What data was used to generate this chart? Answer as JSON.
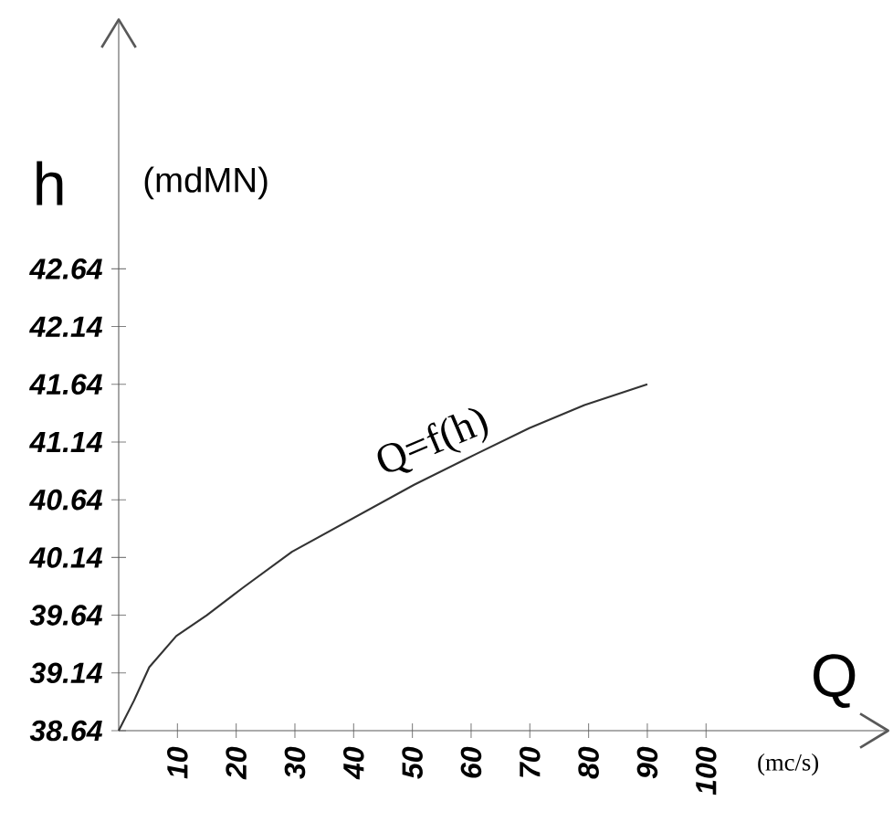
{
  "chart_data": {
    "type": "line",
    "xlabel": "Q",
    "ylabel": "h",
    "x": [
      0,
      2.6,
      5.2,
      9.8,
      15,
      21.2,
      29.5,
      39.9,
      50.3,
      60.6,
      69.9,
      79.3,
      90
    ],
    "values": [
      38.64,
      38.9,
      39.19,
      39.46,
      39.64,
      39.88,
      40.19,
      40.48,
      40.77,
      41.03,
      41.26,
      41.46,
      41.64
    ],
    "color": "#333333",
    "xlim": [
      0,
      131
    ],
    "ylim": [
      38.64,
      44.8
    ],
    "xticks": [
      10,
      20,
      30,
      40,
      50,
      60,
      70,
      80,
      90,
      100
    ],
    "yticks": [
      38.64,
      39.14,
      39.64,
      40.14,
      40.64,
      41.14,
      41.64,
      42.14,
      42.64
    ],
    "annotations": [
      "(mdMN)",
      "(mc/s)",
      {
        "text": "Q=f(h)",
        "x": 55,
        "y": 40.95
      }
    ]
  }
}
